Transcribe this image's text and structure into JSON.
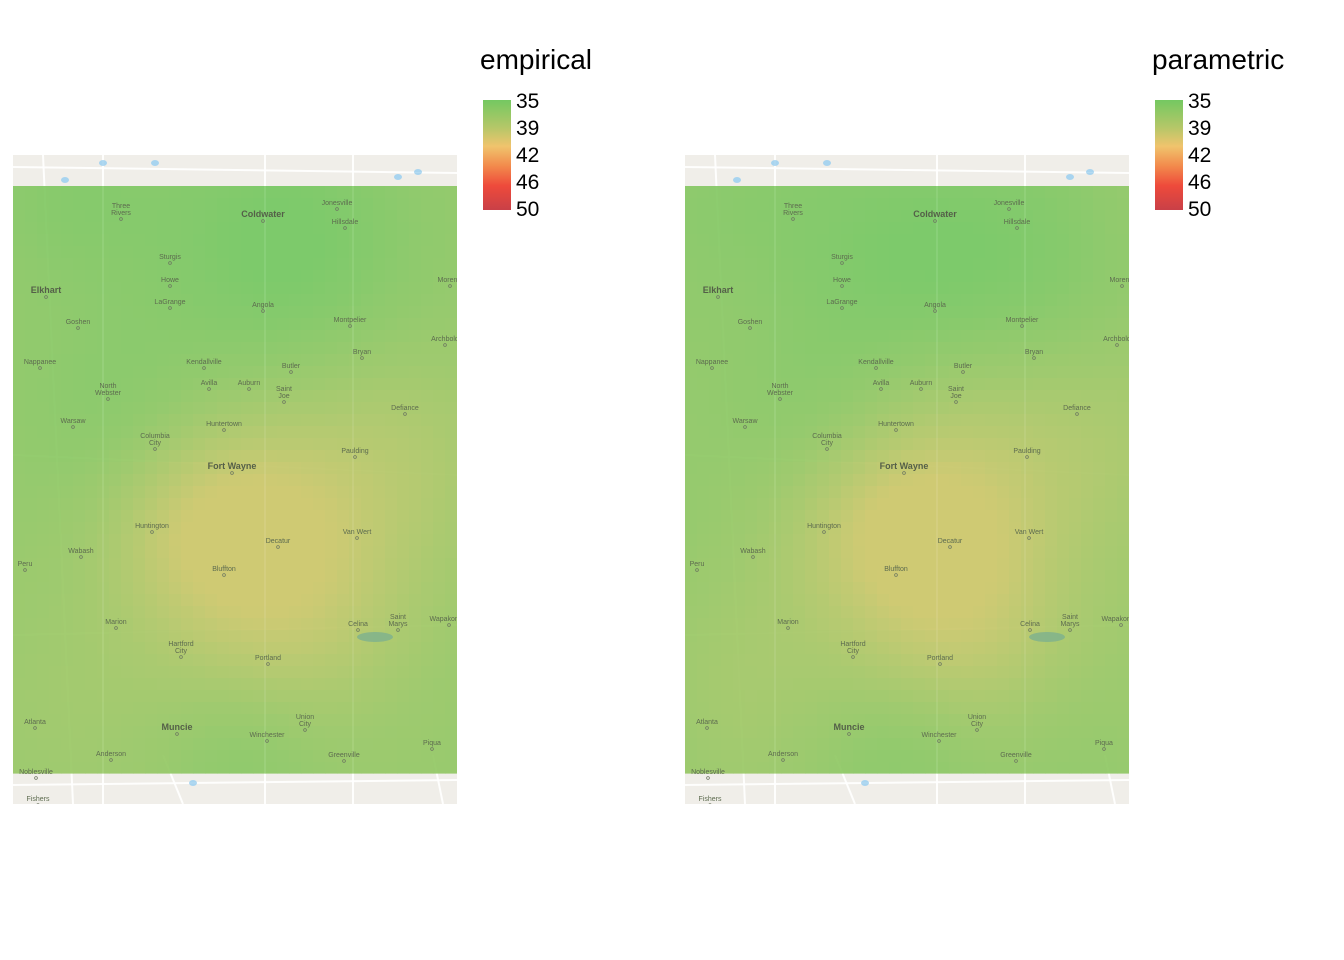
{
  "panels": [
    {
      "legend_title": "empirical",
      "legend_ticks": [
        "35",
        "39",
        "42",
        "46",
        "50"
      ]
    },
    {
      "legend_title": "parametric",
      "legend_ticks": [
        "35",
        "39",
        "42",
        "46",
        "50"
      ]
    }
  ],
  "colors": {
    "low": "#74c861",
    "mid": "#e6c46a",
    "high": "#e8403c",
    "max": "#c94047",
    "basemap": "#f0eee9",
    "water": "#a8d4ef"
  },
  "towns": [
    {
      "name": "Three Rivers",
      "lines": [
        "Three",
        "Rivers"
      ],
      "major": false
    },
    {
      "name": "Coldwater",
      "lines": [
        "Coldwater"
      ],
      "major": true
    },
    {
      "name": "Jonesville",
      "lines": [
        "Jonesville"
      ],
      "major": false
    },
    {
      "name": "Hillsdale",
      "lines": [
        "Hillsdale"
      ],
      "major": false
    },
    {
      "name": "Sturgis",
      "lines": [
        "Sturgis"
      ],
      "major": false
    },
    {
      "name": "Elkhart",
      "lines": [
        "Elkhart"
      ],
      "major": true
    },
    {
      "name": "Howe",
      "lines": [
        "Howe"
      ],
      "major": false
    },
    {
      "name": "LaGrange",
      "lines": [
        "LaGrange"
      ],
      "major": false
    },
    {
      "name": "Angola",
      "lines": [
        "Angola"
      ],
      "major": false
    },
    {
      "name": "Morenci",
      "lines": [
        "Morenci"
      ],
      "major": false
    },
    {
      "name": "Goshen",
      "lines": [
        "Goshen"
      ],
      "major": false
    },
    {
      "name": "Montpelier",
      "lines": [
        "Montpelier"
      ],
      "major": false
    },
    {
      "name": "Archbold",
      "lines": [
        "Archbold"
      ],
      "major": false
    },
    {
      "name": "Bryan",
      "lines": [
        "Bryan"
      ],
      "major": false
    },
    {
      "name": "Nappanee",
      "lines": [
        "Nappanee"
      ],
      "major": false
    },
    {
      "name": "Kendallville",
      "lines": [
        "Kendallville"
      ],
      "major": false
    },
    {
      "name": "Butler",
      "lines": [
        "Butler"
      ],
      "major": false
    },
    {
      "name": "North Webster",
      "lines": [
        "North",
        "Webster"
      ],
      "major": false
    },
    {
      "name": "Avilla",
      "lines": [
        "Avilla"
      ],
      "major": false
    },
    {
      "name": "Auburn",
      "lines": [
        "Auburn"
      ],
      "major": false
    },
    {
      "name": "Saint Joe",
      "lines": [
        "Saint",
        "Joe"
      ],
      "major": false
    },
    {
      "name": "Defiance",
      "lines": [
        "Defiance"
      ],
      "major": false
    },
    {
      "name": "Warsaw",
      "lines": [
        "Warsaw"
      ],
      "major": false
    },
    {
      "name": "Huntertown",
      "lines": [
        "Huntertown"
      ],
      "major": false
    },
    {
      "name": "Columbia City",
      "lines": [
        "Columbia",
        "City"
      ],
      "major": false
    },
    {
      "name": "Paulding",
      "lines": [
        "Paulding"
      ],
      "major": false
    },
    {
      "name": "Fort Wayne",
      "lines": [
        "Fort Wayne"
      ],
      "major": true
    },
    {
      "name": "Huntington",
      "lines": [
        "Huntington"
      ],
      "major": false
    },
    {
      "name": "Van Wert",
      "lines": [
        "Van Wert"
      ],
      "major": false
    },
    {
      "name": "Decatur",
      "lines": [
        "Decatur"
      ],
      "major": false
    },
    {
      "name": "Wabash",
      "lines": [
        "Wabash"
      ],
      "major": false
    },
    {
      "name": "Peru",
      "lines": [
        "Peru"
      ],
      "major": false
    },
    {
      "name": "Bluffton",
      "lines": [
        "Bluffton"
      ],
      "major": false
    },
    {
      "name": "Saint Marys",
      "lines": [
        "Saint",
        "Marys"
      ],
      "major": false
    },
    {
      "name": "Wapakoneta",
      "lines": [
        "Wapakoneta"
      ],
      "major": false
    },
    {
      "name": "Marion",
      "lines": [
        "Marion"
      ],
      "major": false
    },
    {
      "name": "Celina",
      "lines": [
        "Celina"
      ],
      "major": false
    },
    {
      "name": "Hartford City",
      "lines": [
        "Hartford",
        "City"
      ],
      "major": false
    },
    {
      "name": "Portland",
      "lines": [
        "Portland"
      ],
      "major": false
    },
    {
      "name": "Union City",
      "lines": [
        "Union",
        "City"
      ],
      "major": false
    },
    {
      "name": "Atlanta",
      "lines": [
        "Atlanta"
      ],
      "major": false
    },
    {
      "name": "Muncie",
      "lines": [
        "Muncie"
      ],
      "major": true
    },
    {
      "name": "Winchester",
      "lines": [
        "Winchester"
      ],
      "major": false
    },
    {
      "name": "Anderson",
      "lines": [
        "Anderson"
      ],
      "major": false
    },
    {
      "name": "Greenville",
      "lines": [
        "Greenville"
      ],
      "major": false
    },
    {
      "name": "Piqua",
      "lines": [
        "Piqua"
      ],
      "major": false
    },
    {
      "name": "Noblesville",
      "lines": [
        "Noblesville"
      ],
      "major": false
    },
    {
      "name": "Fishers",
      "lines": [
        "Fishers"
      ],
      "major": false
    }
  ]
}
